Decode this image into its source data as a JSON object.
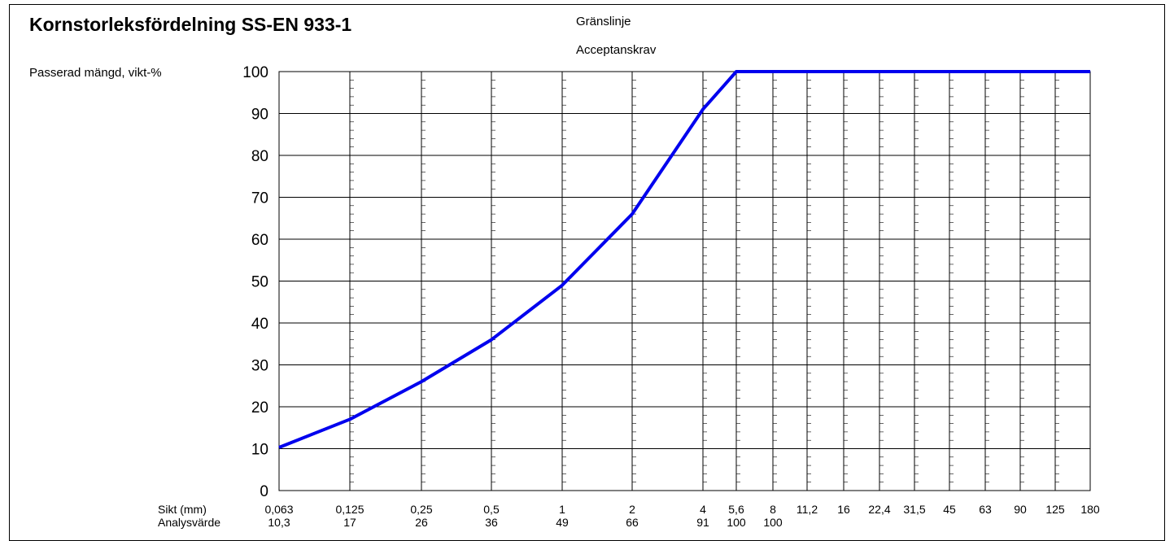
{
  "chart_data": {
    "type": "line",
    "title": "Kornstorleksfördelning SS-EN 933-1",
    "legend": [
      "Gränslinje",
      "Acceptanskrav"
    ],
    "ylabel": "Passerad mängd, vikt-%",
    "ylim": [
      0,
      100
    ],
    "yticks": [
      "0",
      "10",
      "20",
      "30",
      "40",
      "50",
      "60",
      "70",
      "80",
      "90",
      "100"
    ],
    "x_row_label": "Sikt (mm)",
    "value_row_label": "Analysvärde",
    "sieves": [
      "0,063",
      "0,125",
      "0,25",
      "0,5",
      "1",
      "2",
      "4",
      "5,6",
      "8",
      "11,2",
      "16",
      "22,4",
      "31,5",
      "45",
      "63",
      "90",
      "125",
      "180"
    ],
    "x": [
      0.063,
      0.125,
      0.25,
      0.5,
      1,
      2,
      4,
      5.6,
      8,
      11.2,
      16,
      22.4,
      31.5,
      45,
      63,
      90,
      125,
      180
    ],
    "analysis_labels": [
      "10,3",
      "17",
      "26",
      "36",
      "49",
      "66",
      "91",
      "100",
      "100",
      "",
      "",
      "",
      "",
      "",
      "",
      "",
      "",
      ""
    ],
    "series": [
      {
        "values": [
          10.3,
          17,
          26,
          36,
          49,
          66,
          91,
          100,
          100,
          100,
          100,
          100,
          100,
          100,
          100,
          100,
          100,
          100
        ],
        "color": "#0000ee"
      }
    ]
  }
}
